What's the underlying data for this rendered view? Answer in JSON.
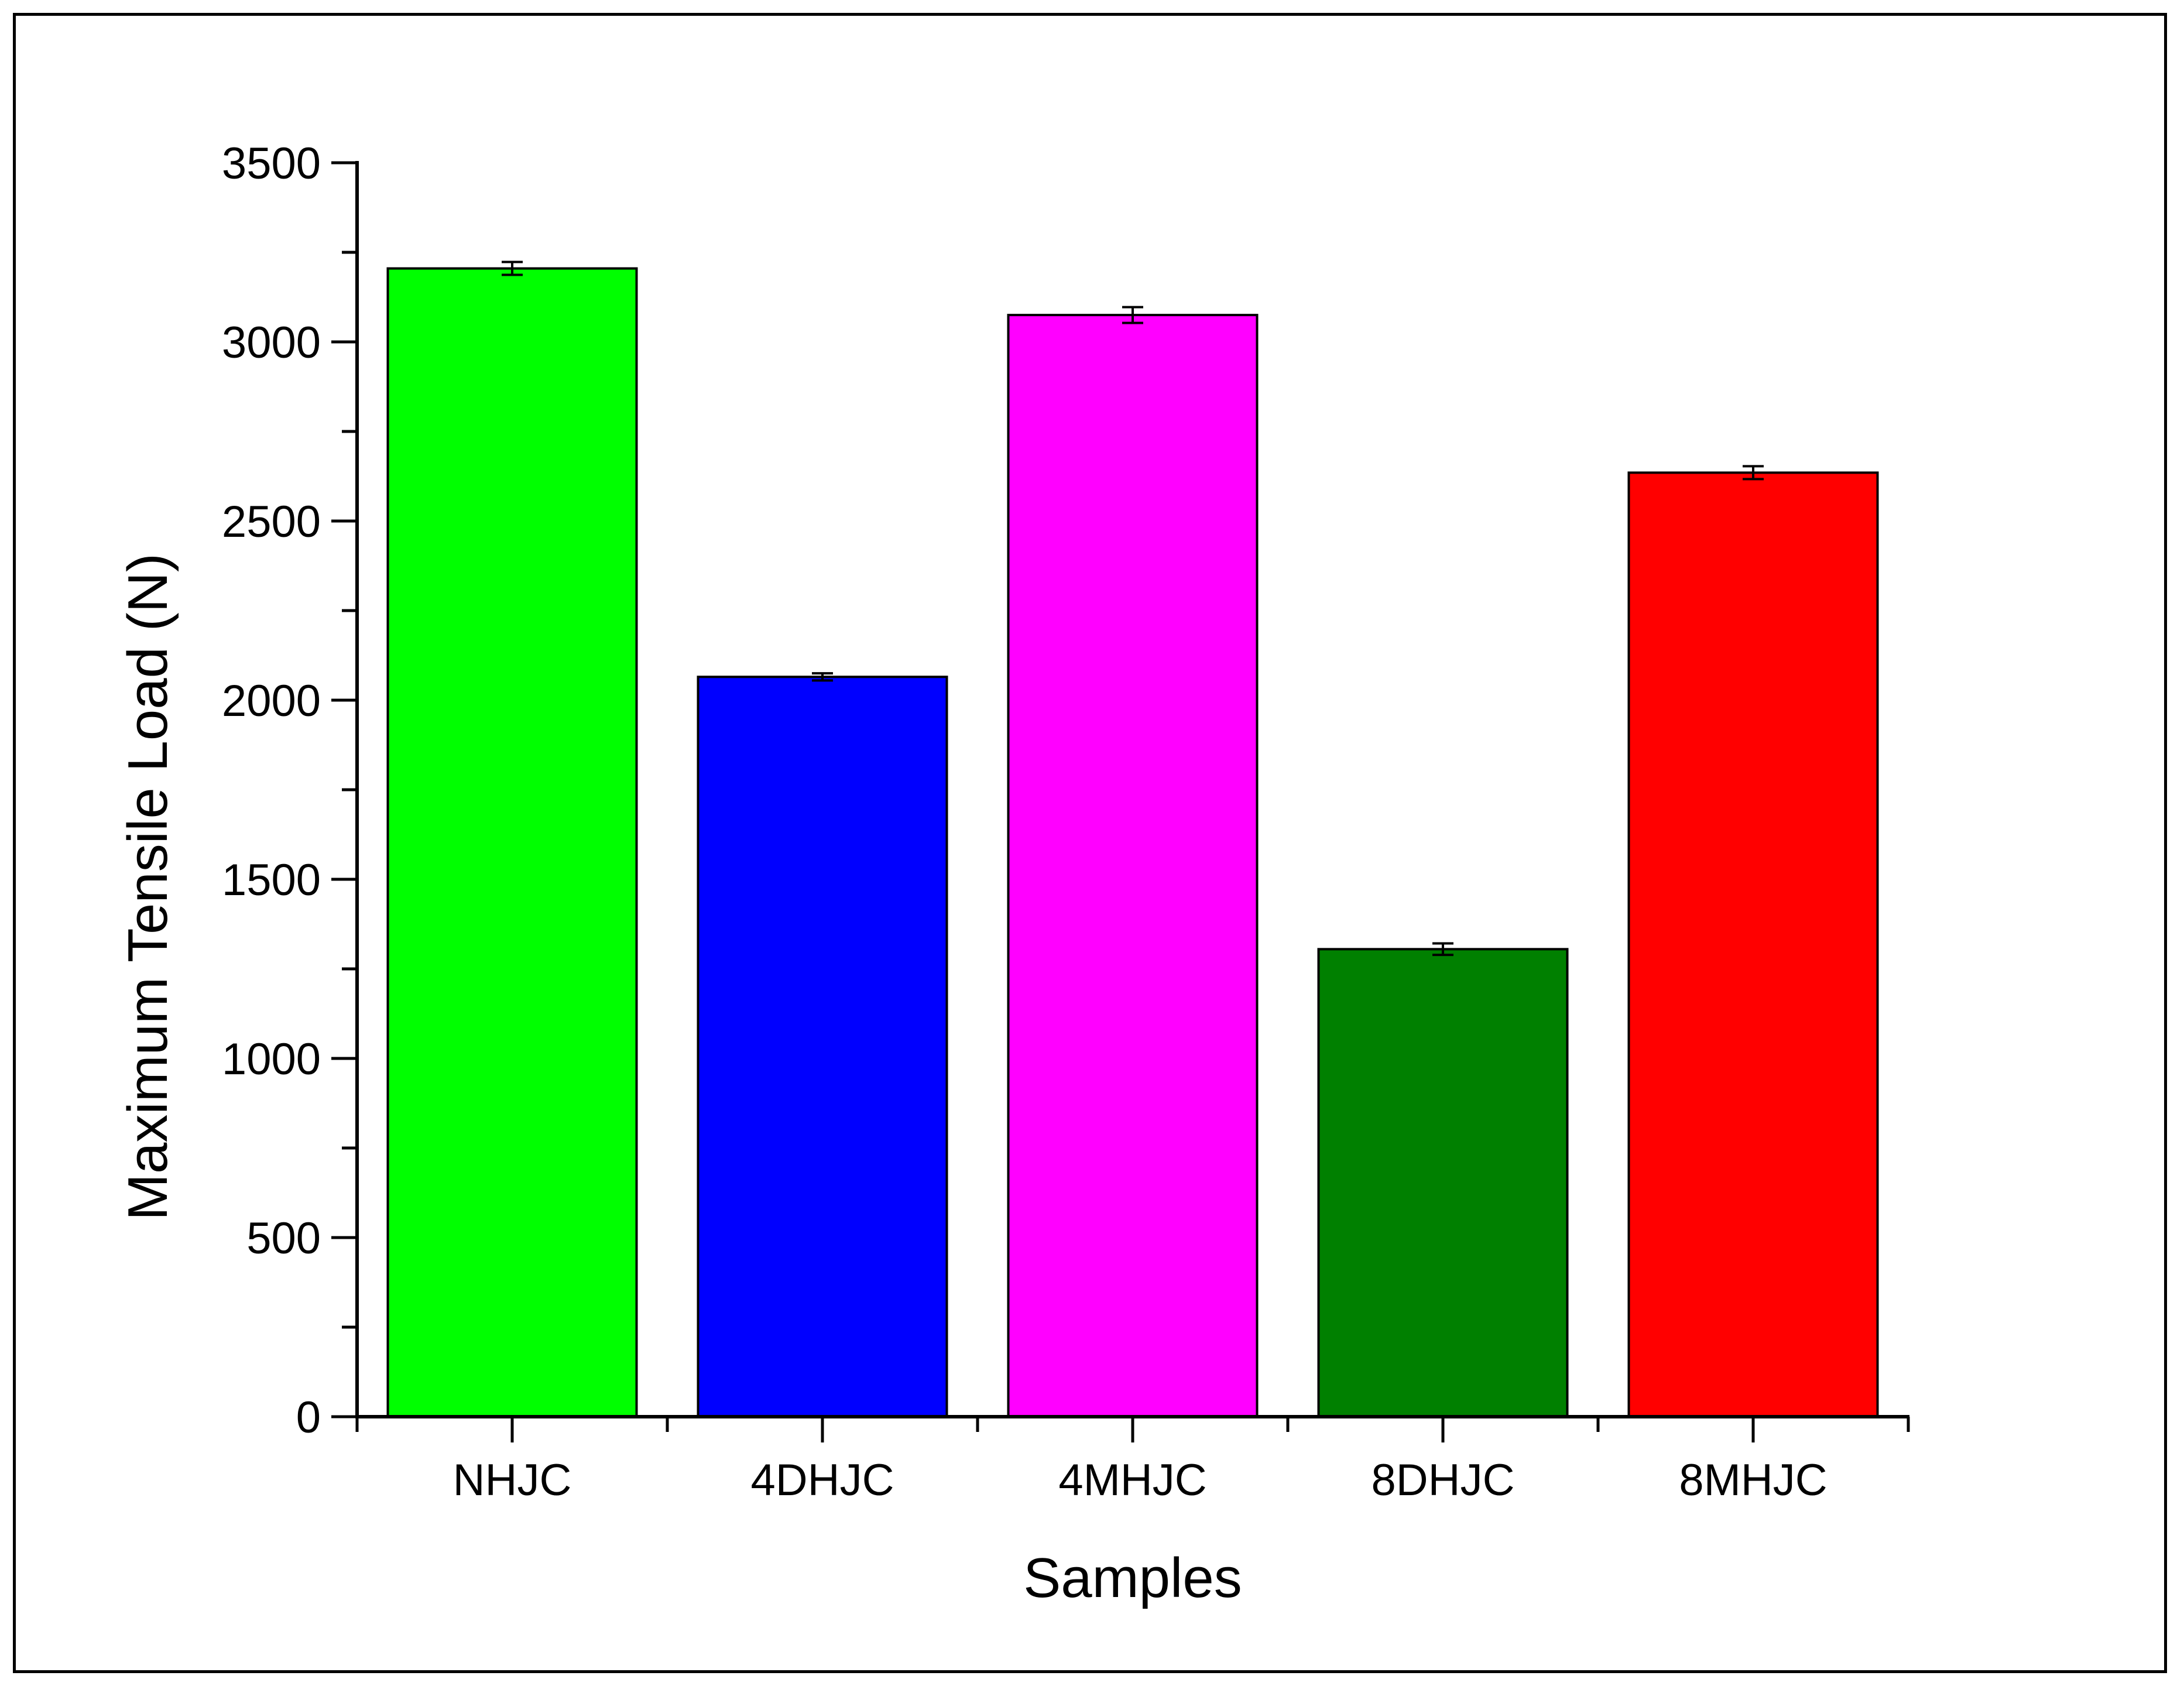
{
  "chart_data": {
    "type": "bar",
    "title": "",
    "xlabel": "Samples",
    "ylabel": "Maximum Tensile Load (N)",
    "categories": [
      "NHJC",
      "4DHJC",
      "4MHJC",
      "8DHJC",
      "8MHJC"
    ],
    "values": [
      3205,
      2065,
      3075,
      1305,
      2635
    ],
    "errors": [
      18,
      10,
      22,
      16,
      18
    ],
    "colors": [
      "#00ff00",
      "#0000ff",
      "#ff00ff",
      "#008000",
      "#ff0000"
    ],
    "ylim": [
      0,
      3500
    ],
    "yticks": [
      0,
      500,
      1000,
      1500,
      2000,
      2500,
      3000,
      3500
    ],
    "y_minor_step": 250,
    "grid": false,
    "legend": "none"
  }
}
